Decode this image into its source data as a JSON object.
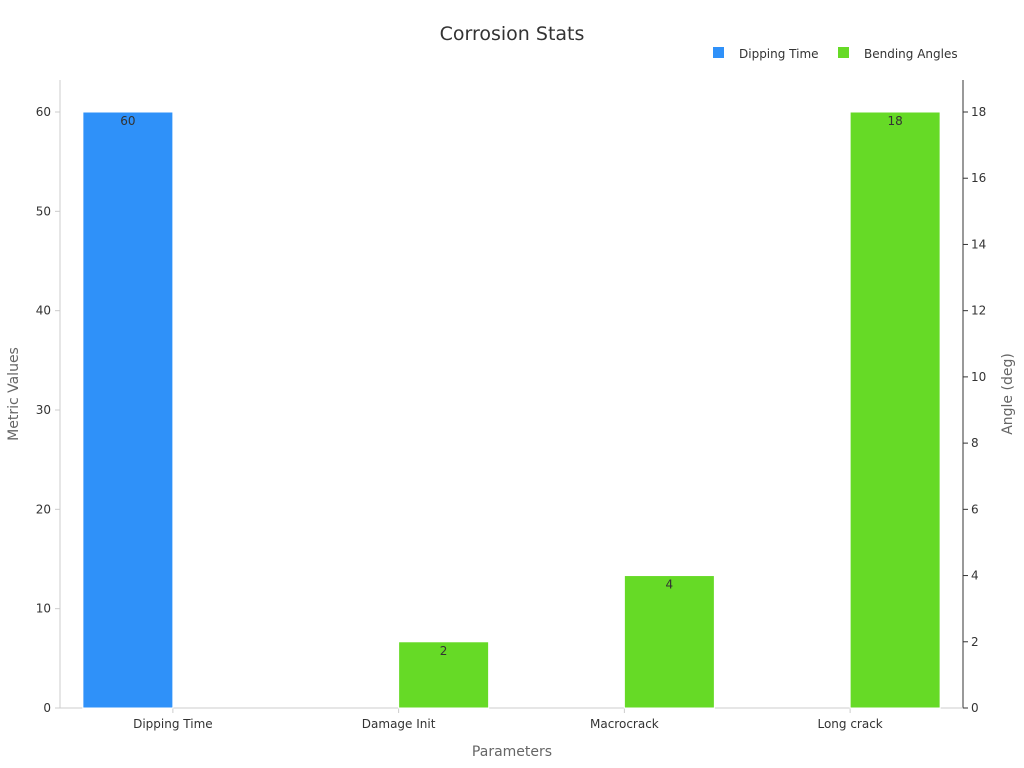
{
  "chart_data": {
    "type": "bar",
    "title": "Corrosion Stats",
    "xlabel": "Parameters",
    "ylabel": "Metric Values",
    "y2label": "Angle (deg)",
    "categories": [
      "Dipping Time",
      "Damage Init",
      "Macrocrack",
      "Long crack"
    ],
    "ylim": [
      0,
      63
    ],
    "y2lim": [
      0,
      18.9
    ],
    "yticks": [
      0,
      10,
      20,
      30,
      40,
      50,
      60
    ],
    "y2ticks": [
      0,
      2,
      4,
      6,
      8,
      10,
      12,
      14,
      16,
      18
    ],
    "grid": false,
    "legend_position": "top-right",
    "series": [
      {
        "name": "Dipping Time",
        "axis": "left",
        "color": "#2f91f9",
        "values": [
          60,
          null,
          null,
          null
        ],
        "labels": [
          "60",
          "",
          "",
          ""
        ]
      },
      {
        "name": "Bending Angles",
        "axis": "right",
        "color": "#66da26",
        "values": [
          null,
          2,
          4,
          18
        ],
        "labels": [
          "",
          "2",
          "4",
          "18"
        ]
      }
    ]
  }
}
